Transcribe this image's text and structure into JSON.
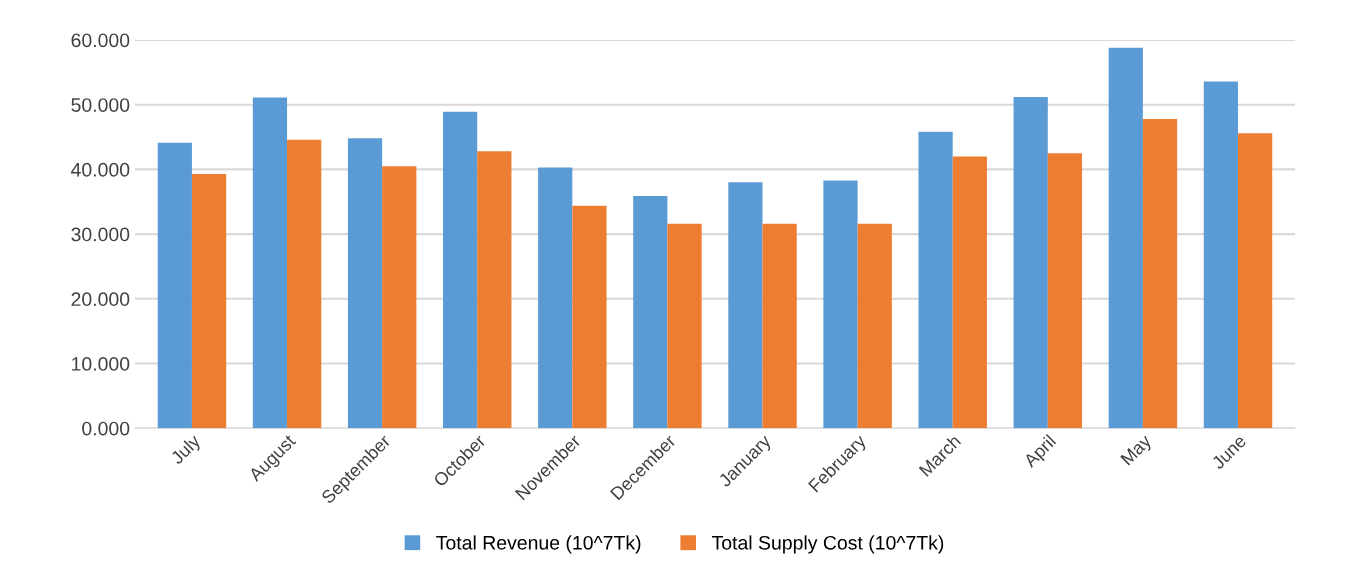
{
  "chart_data": {
    "type": "bar",
    "categories": [
      "July",
      "August",
      "September",
      "October",
      "November",
      "December",
      "January",
      "February",
      "March",
      "April",
      "May",
      "June"
    ],
    "series": [
      {
        "name": "Total Revenue (10^7Tk)",
        "color": "#5b9bd5",
        "values": [
          44.1,
          51.1,
          44.8,
          48.9,
          40.3,
          35.9,
          38.0,
          38.3,
          45.8,
          51.2,
          58.8,
          53.6
        ]
      },
      {
        "name": "Total Supply Cost (10^7Tk)",
        "color": "#ed7d31",
        "values": [
          39.3,
          44.6,
          40.5,
          42.8,
          34.4,
          31.6,
          31.6,
          31.6,
          42.0,
          42.5,
          47.8,
          45.6
        ]
      }
    ],
    "ylim": [
      0,
      60
    ],
    "yticks": [
      {
        "value": 0,
        "label": "0.000"
      },
      {
        "value": 10,
        "label": "10.000"
      },
      {
        "value": 20,
        "label": "20.000"
      },
      {
        "value": 30,
        "label": "30.000"
      },
      {
        "value": 40,
        "label": "40.000"
      },
      {
        "value": 50,
        "label": "50.000"
      },
      {
        "value": 60,
        "label": "60.000"
      }
    ],
    "grid": "y",
    "legend": "bottom"
  }
}
